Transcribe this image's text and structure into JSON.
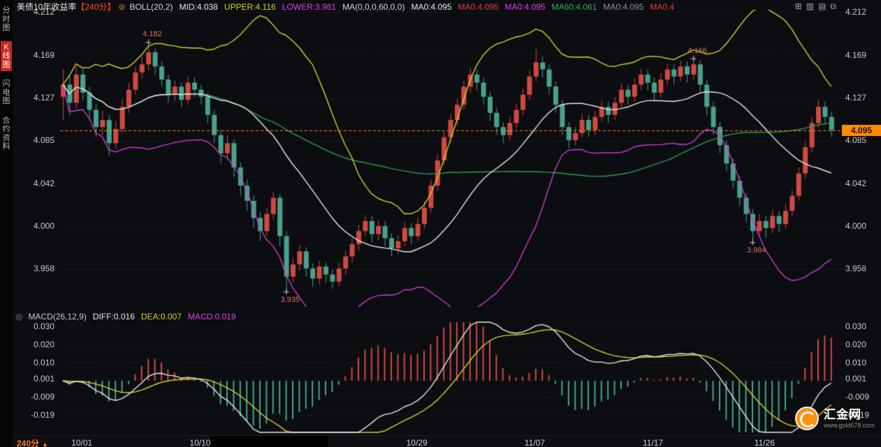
{
  "header": {
    "title": "美债10年收益率",
    "period_tag": "【240分】",
    "badge_glyph": "⊜",
    "indicators": [
      {
        "text": "BOLL(20,2)",
        "color": "#d6d6d6"
      },
      {
        "text": "MID:4.038",
        "color": "#e9e9e9"
      },
      {
        "text": "UPPER:4.116",
        "color": "#d3d32b"
      },
      {
        "text": "LOWER:3.961",
        "color": "#e23de2"
      },
      {
        "text": "MA(0,0,0,60,0,0)",
        "color": "#d6d6d6"
      },
      {
        "text": "MA0:4.095",
        "color": "#e9e9e9"
      },
      {
        "text": "MA0:4.095",
        "color": "#e23b3b"
      },
      {
        "text": "MA0:4.095",
        "color": "#e23de2"
      },
      {
        "text": "MA60:4.061",
        "color": "#2fae4e"
      },
      {
        "text": "MA0:4.095",
        "color": "#8f8f8f"
      },
      {
        "text": "MA0:4",
        "color": "#e23b3b"
      }
    ],
    "window_icons": [
      {
        "name": "split-view-icon",
        "glyph": "⊞"
      },
      {
        "name": "grid-view-icon",
        "glyph": "▥"
      },
      {
        "name": "list-view-icon",
        "glyph": "▤"
      },
      {
        "name": "popout-window-icon",
        "glyph": "⧉"
      }
    ]
  },
  "sidebar": {
    "items": [
      {
        "id": "time-chart",
        "label": "分时图",
        "active": false
      },
      {
        "id": "kline-chart",
        "label": "K线图",
        "active": true
      },
      {
        "id": "flash-chart",
        "label": "闪电图",
        "active": false
      },
      {
        "id": "contract-info",
        "label": "合约资料",
        "active": false
      }
    ]
  },
  "macd_header": {
    "icon_glyph": "◎",
    "segments": [
      {
        "text": "MACD(26,12,9)",
        "color": "#c8c8c8"
      },
      {
        "text": "DIFF:0.016",
        "color": "#e9e9e9"
      },
      {
        "text": "DEA:0.007",
        "color": "#d3d32b"
      },
      {
        "text": "MACD:0.019",
        "color": "#e23de2"
      }
    ]
  },
  "bottom_bar": {
    "period": "240分",
    "arrow": "▲"
  },
  "logo": {
    "name": "汇金网",
    "url": "www.gold678.com"
  },
  "colors": {
    "up": "#cf4a42",
    "down": "#47a28e",
    "boll_upper": "#d3d32b",
    "boll_mid": "#e9e9e9",
    "boll_lower": "#cf3ccf",
    "ma60": "#2e9e4f",
    "price_line": "#ff8a00",
    "macd_diff": "#e9e9e9",
    "macd_dea": "#d3d32b",
    "grid": "#2b2c33",
    "annotation": "#e0715a"
  },
  "chart_data": {
    "type": "candlestick",
    "title": "美债10年收益率",
    "period": "240分",
    "ylim": [
      3.927,
      4.212
    ],
    "grid": true,
    "current_price": 4.095,
    "current_price_label": "4.095",
    "y_axis": [
      {
        "text": "4.212",
        "value": 4.212
      },
      {
        "text": "4.169",
        "value": 4.169
      },
      {
        "text": "4.127",
        "value": 4.127
      },
      {
        "text": "4.085",
        "value": 4.085
      },
      {
        "text": "4.042",
        "value": 4.042
      },
      {
        "text": "4.000",
        "value": 4.0
      },
      {
        "text": "3.958",
        "value": 3.958
      }
    ],
    "x_axis_labels": [
      {
        "text": "10/01",
        "index": 3
      },
      {
        "text": "10/10",
        "index": 21
      },
      {
        "text": "10/29",
        "index": 54
      },
      {
        "text": "11/07",
        "index": 72
      },
      {
        "text": "11/17",
        "index": 90
      },
      {
        "text": "11/26",
        "index": 107
      }
    ],
    "annotations": [
      {
        "label": "4.182",
        "index": 13,
        "price": 4.182,
        "side": "above"
      },
      {
        "label": "4.166",
        "index": 96,
        "price": 4.166,
        "side": "above"
      },
      {
        "label": "3.935",
        "index": 34,
        "price": 3.935,
        "side": "below"
      },
      {
        "label": "3.984",
        "index": 105,
        "price": 3.984,
        "side": "below"
      }
    ],
    "overlays": {
      "boll_period": 20,
      "boll_mult": 2,
      "ma_period": 60
    },
    "macd": {
      "fast": 12,
      "slow": 26,
      "signal": 9,
      "diff": 0.016,
      "dea": 0.007,
      "macd": 0.019,
      "axis": [
        {
          "text": "0.030",
          "value": 0.03
        },
        {
          "text": "0.020",
          "value": 0.02
        },
        {
          "text": "0.010",
          "value": 0.01
        },
        {
          "text": "0.001",
          "value": 0.001
        },
        {
          "text": "-0.009",
          "value": -0.009
        },
        {
          "text": "-0.019",
          "value": -0.019
        }
      ]
    },
    "ohlc": [
      [
        4.128,
        4.155,
        4.105,
        4.14
      ],
      [
        4.14,
        4.148,
        4.11,
        4.122
      ],
      [
        4.122,
        4.158,
        4.116,
        4.15
      ],
      [
        4.15,
        4.156,
        4.124,
        4.132
      ],
      [
        4.132,
        4.138,
        4.106,
        4.115
      ],
      [
        4.115,
        4.121,
        4.088,
        4.098
      ],
      [
        4.098,
        4.114,
        4.09,
        4.105
      ],
      [
        4.105,
        4.11,
        4.07,
        4.082
      ],
      [
        4.082,
        4.104,
        4.076,
        4.096
      ],
      [
        4.096,
        4.126,
        4.092,
        4.118
      ],
      [
        4.118,
        4.142,
        4.112,
        4.135
      ],
      [
        4.135,
        4.158,
        4.13,
        4.152
      ],
      [
        4.152,
        4.168,
        4.146,
        4.16
      ],
      [
        4.16,
        4.182,
        4.154,
        4.172
      ],
      [
        4.172,
        4.176,
        4.15,
        4.158
      ],
      [
        4.158,
        4.163,
        4.138,
        4.145
      ],
      [
        4.145,
        4.15,
        4.122,
        4.13
      ],
      [
        4.13,
        4.144,
        4.124,
        4.138
      ],
      [
        4.138,
        4.142,
        4.118,
        4.125
      ],
      [
        4.125,
        4.148,
        4.12,
        4.142
      ],
      [
        4.142,
        4.147,
        4.128,
        4.135
      ],
      [
        4.135,
        4.14,
        4.12,
        4.128
      ],
      [
        4.128,
        4.132,
        4.102,
        4.11
      ],
      [
        4.11,
        4.115,
        4.082,
        4.09
      ],
      [
        4.09,
        4.095,
        4.062,
        4.072
      ],
      [
        4.072,
        4.09,
        4.066,
        4.082
      ],
      [
        4.082,
        4.086,
        4.048,
        4.058
      ],
      [
        4.058,
        4.063,
        4.03,
        4.04
      ],
      [
        4.04,
        4.046,
        4.015,
        4.025
      ],
      [
        4.025,
        4.03,
        3.998,
        4.008
      ],
      [
        4.008,
        4.014,
        3.985,
        3.995
      ],
      [
        3.995,
        4.018,
        3.99,
        4.012
      ],
      [
        4.012,
        4.034,
        4.006,
        4.028
      ],
      [
        4.028,
        4.032,
        3.98,
        3.99
      ],
      [
        3.99,
        3.995,
        3.935,
        3.95
      ],
      [
        3.95,
        3.968,
        3.944,
        3.962
      ],
      [
        3.962,
        3.981,
        3.956,
        3.975
      ],
      [
        3.975,
        3.979,
        3.95,
        3.958
      ],
      [
        3.958,
        3.963,
        3.94,
        3.948
      ],
      [
        3.948,
        3.966,
        3.942,
        3.96
      ],
      [
        3.96,
        3.964,
        3.944,
        3.952
      ],
      [
        3.952,
        3.957,
        3.938,
        3.945
      ],
      [
        3.945,
        3.964,
        3.94,
        3.958
      ],
      [
        3.958,
        3.976,
        3.952,
        3.97
      ],
      [
        3.97,
        3.988,
        3.964,
        3.982
      ],
      [
        3.982,
        4.001,
        3.976,
        3.995
      ],
      [
        3.995,
        4.011,
        3.99,
        4.005
      ],
      [
        4.005,
        4.01,
        3.984,
        3.992
      ],
      [
        3.992,
        4.006,
        3.986,
        4.0
      ],
      [
        4.0,
        4.005,
        3.98,
        3.988
      ],
      [
        3.988,
        3.993,
        3.97,
        3.978
      ],
      [
        3.978,
        3.991,
        3.972,
        3.985
      ],
      [
        3.985,
        4.004,
        3.98,
        3.998
      ],
      [
        3.998,
        4.003,
        3.982,
        3.99
      ],
      [
        3.99,
        4.008,
        3.985,
        4.002
      ],
      [
        4.002,
        4.024,
        3.997,
        4.018
      ],
      [
        4.018,
        4.046,
        4.013,
        4.04
      ],
      [
        4.04,
        4.071,
        4.035,
        4.065
      ],
      [
        4.065,
        4.094,
        4.06,
        4.088
      ],
      [
        4.088,
        4.111,
        4.082,
        4.105
      ],
      [
        4.105,
        4.126,
        4.1,
        4.12
      ],
      [
        4.12,
        4.144,
        4.115,
        4.138
      ],
      [
        4.138,
        4.157,
        4.132,
        4.15
      ],
      [
        4.15,
        4.155,
        4.134,
        4.142
      ],
      [
        4.142,
        4.147,
        4.12,
        4.128
      ],
      [
        4.128,
        4.133,
        4.104,
        4.112
      ],
      [
        4.112,
        4.117,
        4.09,
        4.098
      ],
      [
        4.098,
        4.103,
        4.082,
        4.09
      ],
      [
        4.09,
        4.108,
        4.085,
        4.102
      ],
      [
        4.102,
        4.121,
        4.097,
        4.115
      ],
      [
        4.115,
        4.136,
        4.11,
        4.13
      ],
      [
        4.13,
        4.154,
        4.125,
        4.148
      ],
      [
        4.148,
        4.175,
        4.143,
        4.162
      ],
      [
        4.162,
        4.168,
        4.147,
        4.155
      ],
      [
        4.155,
        4.16,
        4.13,
        4.138
      ],
      [
        4.138,
        4.143,
        4.112,
        4.12
      ],
      [
        4.12,
        4.125,
        4.09,
        4.098
      ],
      [
        4.098,
        4.103,
        4.077,
        4.085
      ],
      [
        4.085,
        4.098,
        4.08,
        4.092
      ],
      [
        4.092,
        4.111,
        4.087,
        4.105
      ],
      [
        4.105,
        4.11,
        4.088,
        4.095
      ],
      [
        4.095,
        4.114,
        4.09,
        4.108
      ],
      [
        4.108,
        4.124,
        4.103,
        4.118
      ],
      [
        4.118,
        4.123,
        4.102,
        4.11
      ],
      [
        4.11,
        4.128,
        4.105,
        4.122
      ],
      [
        4.122,
        4.141,
        4.117,
        4.135
      ],
      [
        4.135,
        4.14,
        4.12,
        4.128
      ],
      [
        4.128,
        4.146,
        4.123,
        4.14
      ],
      [
        4.14,
        4.156,
        4.135,
        4.15
      ],
      [
        4.15,
        4.155,
        4.134,
        4.142
      ],
      [
        4.142,
        4.147,
        4.124,
        4.132
      ],
      [
        4.132,
        4.151,
        4.127,
        4.145
      ],
      [
        4.145,
        4.161,
        4.14,
        4.155
      ],
      [
        4.155,
        4.16,
        4.14,
        4.148
      ],
      [
        4.148,
        4.164,
        4.143,
        4.158
      ],
      [
        4.158,
        4.163,
        4.142,
        4.15
      ],
      [
        4.15,
        4.166,
        4.145,
        4.16
      ],
      [
        4.16,
        4.164,
        4.132,
        4.14
      ],
      [
        4.14,
        4.145,
        4.11,
        4.118
      ],
      [
        4.118,
        4.123,
        4.09,
        4.098
      ],
      [
        4.098,
        4.103,
        4.072,
        4.08
      ],
      [
        4.08,
        4.085,
        4.054,
        4.062
      ],
      [
        4.062,
        4.067,
        4.037,
        4.045
      ],
      [
        4.045,
        4.05,
        4.02,
        4.028
      ],
      [
        4.028,
        4.033,
        4.004,
        4.012
      ],
      [
        4.012,
        4.017,
        3.984,
        3.995
      ],
      [
        3.995,
        4.012,
        3.99,
        4.005
      ],
      [
        4.005,
        4.01,
        3.988,
        3.998
      ],
      [
        3.998,
        4.016,
        3.993,
        4.01
      ],
      [
        4.01,
        4.015,
        3.994,
        4.002
      ],
      [
        4.002,
        4.021,
        3.997,
        4.015
      ],
      [
        4.015,
        4.036,
        4.01,
        4.03
      ],
      [
        4.03,
        4.058,
        4.025,
        4.052
      ],
      [
        4.052,
        4.084,
        4.047,
        4.078
      ],
      [
        4.078,
        4.108,
        4.073,
        4.102
      ],
      [
        4.102,
        4.125,
        4.097,
        4.118
      ],
      [
        4.118,
        4.123,
        4.1,
        4.108
      ],
      [
        4.108,
        4.113,
        4.088,
        4.095
      ]
    ]
  }
}
